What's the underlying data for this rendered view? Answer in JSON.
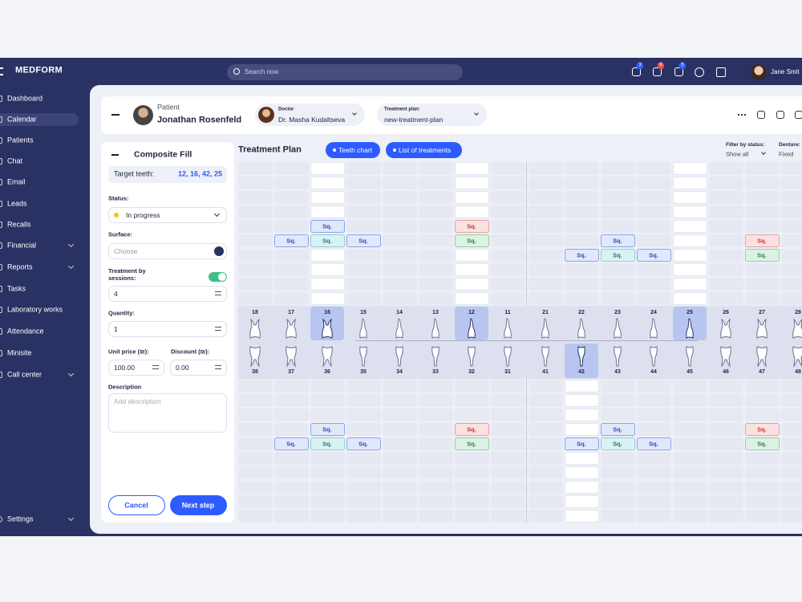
{
  "header": {
    "logo": "MEDFORM",
    "search_placeholder": "Search now",
    "notifications": [
      3,
      6,
      5
    ],
    "user": "Jane Smit"
  },
  "sidebar": {
    "items": [
      {
        "label": "Dashboard"
      },
      {
        "label": "Calendar",
        "active": true
      },
      {
        "label": "Patients"
      },
      {
        "label": "Chat"
      },
      {
        "label": "Email"
      },
      {
        "label": "Leads"
      },
      {
        "label": "Recalls"
      },
      {
        "label": "Financial",
        "expandable": true
      },
      {
        "label": "Reports",
        "expandable": true
      },
      {
        "label": "Tasks"
      },
      {
        "label": "Laboratory works"
      },
      {
        "label": "Attendance"
      },
      {
        "label": "Minisite"
      },
      {
        "label": "Call center",
        "expandable": true
      }
    ],
    "footer": {
      "label": "Settings",
      "expandable": true
    }
  },
  "patient_bar": {
    "patient_label": "Patient",
    "patient_name": "Jonathan Rosenfeld",
    "doctor_label": "Doctor",
    "doctor_name": "Dr. Masha Kudaltseva",
    "plan_label": "Treatment plan:",
    "plan_name": "new-treatment-plan"
  },
  "form": {
    "title": "Composite Fill",
    "target_label": "Target teeth:",
    "target_value": "12, 16, 42, 25",
    "status_label": "Status:",
    "status_value": "In progress",
    "surface_label": "Surface:",
    "surface_placeholder": "Choose",
    "sessions_label": "Treatment by sessions:",
    "sessions_value": "4",
    "quantity_label": "Quantity:",
    "quantity_value": "1",
    "price_label": "Unit price (₪):",
    "price_value": "100.00",
    "discount_label": "Discount (₪):",
    "discount_value": "0.00",
    "description_label": "Description",
    "description_placeholder": "Add description",
    "cancel": "Cancel",
    "next": "Next step"
  },
  "chart": {
    "title": "Treatment Plan",
    "tabs": [
      "Teeth chart",
      "List of treatments"
    ],
    "filter_label": "Filter by status:",
    "filter_value": "Show all",
    "denture_label": "Denture:",
    "denture_value": "Fixed",
    "upper_teeth": [
      {
        "number": 18
      },
      {
        "number": 17
      },
      {
        "number": 16,
        "selected": true
      },
      {
        "number": 15
      },
      {
        "number": 14
      },
      {
        "number": 13
      },
      {
        "number": 12,
        "selected": true
      },
      {
        "number": 11
      },
      {
        "number": 21
      },
      {
        "number": 22
      },
      {
        "number": 23
      },
      {
        "number": 24
      },
      {
        "number": 25,
        "selected": true
      },
      {
        "number": 26
      },
      {
        "number": 27
      },
      {
        "number": 28
      }
    ],
    "lower_teeth": [
      {
        "number": 38
      },
      {
        "number": 37
      },
      {
        "number": 36
      },
      {
        "number": 35
      },
      {
        "number": 34
      },
      {
        "number": 33
      },
      {
        "number": 32
      },
      {
        "number": 31
      },
      {
        "number": 41
      },
      {
        "number": 42,
        "selected": true
      },
      {
        "number": 43
      },
      {
        "number": 44
      },
      {
        "number": 45
      },
      {
        "number": 46
      },
      {
        "number": 47
      },
      {
        "number": 48
      }
    ],
    "upper_rows": [
      [
        null,
        null,
        null,
        null,
        null,
        null,
        null,
        null,
        null,
        null,
        null,
        null,
        null,
        null,
        null,
        null
      ],
      [
        null,
        null,
        null,
        null,
        null,
        null,
        null,
        null,
        null,
        null,
        null,
        null,
        null,
        null,
        null,
        null
      ],
      [
        null,
        null,
        null,
        null,
        null,
        null,
        null,
        null,
        null,
        null,
        null,
        null,
        null,
        null,
        null,
        null
      ],
      [
        null,
        null,
        null,
        null,
        null,
        null,
        null,
        null,
        null,
        null,
        null,
        null,
        null,
        null,
        null,
        null
      ],
      [
        null,
        null,
        {
          "text": "Sq.",
          "color": "blue"
        },
        null,
        null,
        null,
        {
          "text": "Sq.",
          "color": "red"
        },
        null,
        null,
        null,
        null,
        null,
        null,
        null,
        null,
        null
      ],
      [
        null,
        {
          "text": "Sq.",
          "color": "blue"
        },
        {
          "text": "Sq.",
          "color": "teal"
        },
        {
          "text": "Sq.",
          "color": "blue"
        },
        null,
        null,
        {
          "text": "Sq.",
          "color": "green"
        },
        null,
        null,
        null,
        {
          "text": "Sq.",
          "color": "blue"
        },
        null,
        null,
        null,
        {
          "text": "Sq.",
          "color": "red"
        },
        null
      ],
      [
        null,
        null,
        null,
        null,
        null,
        null,
        null,
        null,
        null,
        {
          "text": "Sq.",
          "color": "blue"
        },
        {
          "text": "Sq.",
          "color": "teal"
        },
        {
          "text": "Sq.",
          "color": "blue"
        },
        null,
        null,
        {
          "text": "Sq.",
          "color": "green"
        },
        null
      ],
      [
        null,
        null,
        null,
        null,
        null,
        null,
        null,
        null,
        null,
        null,
        null,
        null,
        null,
        null,
        null,
        null
      ],
      [
        null,
        null,
        null,
        null,
        null,
        null,
        null,
        null,
        null,
        null,
        null,
        null,
        null,
        null,
        null,
        null
      ],
      [
        null,
        null,
        null,
        null,
        null,
        null,
        null,
        null,
        null,
        null,
        null,
        null,
        null,
        null,
        null,
        null
      ]
    ],
    "lower_rows": [
      [
        null,
        null,
        null,
        null,
        null,
        null,
        null,
        null,
        null,
        null,
        null,
        null,
        null,
        null,
        null,
        null
      ],
      [
        null,
        null,
        null,
        null,
        null,
        null,
        null,
        null,
        null,
        null,
        null,
        null,
        null,
        null,
        null,
        null
      ],
      [
        null,
        null,
        null,
        null,
        null,
        null,
        null,
        null,
        null,
        null,
        null,
        null,
        null,
        null,
        null,
        null
      ],
      [
        null,
        null,
        {
          "text": "Sq.",
          "color": "blue"
        },
        null,
        null,
        null,
        {
          "text": "Sq.",
          "color": "red"
        },
        null,
        null,
        null,
        {
          "text": "Sq.",
          "color": "blue"
        },
        null,
        null,
        null,
        {
          "text": "Sq.",
          "color": "red"
        },
        null
      ],
      [
        null,
        {
          "text": "Sq.",
          "color": "blue"
        },
        {
          "text": "Sq.",
          "color": "teal"
        },
        {
          "text": "Sq.",
          "color": "blue"
        },
        null,
        null,
        {
          "text": "Sq.",
          "color": "green"
        },
        null,
        null,
        {
          "text": "Sq.",
          "color": "blue"
        },
        {
          "text": "Sq.",
          "color": "teal"
        },
        {
          "text": "Sq.",
          "color": "blue"
        },
        null,
        null,
        {
          "text": "Sq.",
          "color": "green"
        },
        null
      ],
      [
        null,
        null,
        null,
        null,
        null,
        null,
        null,
        null,
        null,
        null,
        null,
        null,
        null,
        null,
        null,
        null
      ],
      [
        null,
        null,
        null,
        null,
        null,
        null,
        null,
        null,
        null,
        null,
        null,
        null,
        null,
        null,
        null,
        null
      ],
      [
        null,
        null,
        null,
        null,
        null,
        null,
        null,
        null,
        null,
        null,
        null,
        null,
        null,
        null,
        null,
        null
      ],
      [
        null,
        null,
        null,
        null,
        null,
        null,
        null,
        null,
        null,
        null,
        null,
        null,
        null,
        null,
        null,
        null
      ],
      [
        null,
        null,
        null,
        null,
        null,
        null,
        null,
        null,
        null,
        null,
        null,
        null,
        null,
        null,
        null,
        null
      ]
    ]
  }
}
